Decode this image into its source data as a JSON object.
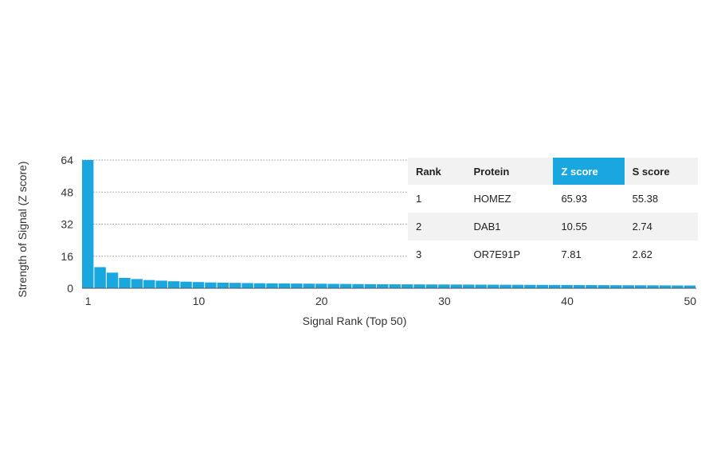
{
  "chart_data": {
    "type": "bar",
    "xlabel": "Signal Rank (Top 50)",
    "ylabel": "Strength of Signal (Z score)",
    "ylim": [
      0,
      64
    ],
    "yticks": [
      0,
      16,
      32,
      48,
      64
    ],
    "xticks": [
      1,
      10,
      20,
      30,
      40,
      50
    ],
    "grid": true,
    "x": [
      1,
      2,
      3,
      4,
      5,
      6,
      7,
      8,
      9,
      10,
      11,
      12,
      13,
      14,
      15,
      16,
      17,
      18,
      19,
      20,
      21,
      22,
      23,
      24,
      25,
      26,
      27,
      28,
      29,
      30,
      31,
      32,
      33,
      34,
      35,
      36,
      37,
      38,
      39,
      40,
      41,
      42,
      43,
      44,
      45,
      46,
      47,
      48,
      49,
      50
    ],
    "values": [
      65.93,
      10.55,
      7.81,
      5.2,
      4.6,
      4.1,
      3.8,
      3.5,
      3.3,
      3.1,
      2.9,
      2.8,
      2.7,
      2.6,
      2.5,
      2.45,
      2.4,
      2.35,
      2.3,
      2.25,
      2.2,
      2.15,
      2.1,
      2.05,
      2.0,
      1.98,
      1.95,
      1.92,
      1.9,
      1.88,
      1.85,
      1.83,
      1.8,
      1.78,
      1.75,
      1.73,
      1.7,
      1.68,
      1.65,
      1.63,
      1.6,
      1.58,
      1.55,
      1.53,
      1.5,
      1.48,
      1.45,
      1.43,
      1.4,
      1.38
    ]
  },
  "table": {
    "headers": [
      "Rank",
      "Protein",
      "Z score",
      "S score"
    ],
    "rows": [
      [
        "1",
        "HOMEZ",
        "65.93",
        "55.38"
      ],
      [
        "2",
        "DAB1",
        "10.55",
        "2.74"
      ],
      [
        "3",
        "OR7E91P",
        "7.81",
        "2.62"
      ]
    ]
  },
  "colors": {
    "bar": "#1aa6de",
    "header_highlight": "#1aa6de"
  }
}
